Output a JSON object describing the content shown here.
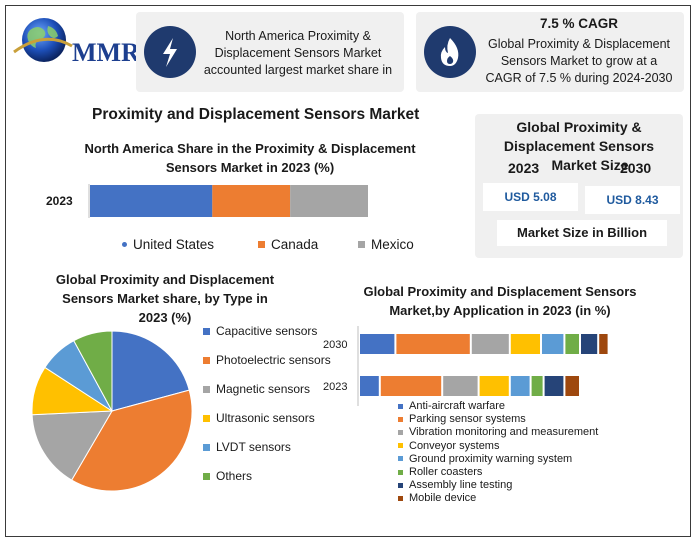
{
  "brand": {
    "logo_text": "MMR"
  },
  "cards": [
    {
      "icon": "lightning-icon",
      "title": "",
      "text_lines": [
        "North America Proximity &",
        "Displacement Sensors Market",
        "accounted largest market share in"
      ]
    },
    {
      "icon": "flame-icon",
      "title": "7.5 % CAGR",
      "text_lines": [
        "Global Proximity & Displacement",
        "Sensors Market to grow at a",
        "CAGR of 7.5 % during 2024-2030"
      ]
    }
  ],
  "main_title": "Proximity and Displacement Sensors Market",
  "market_size": {
    "title_lines": [
      "Global Proximity &",
      "Displacement Sensors",
      "Market Size"
    ],
    "year_left": "2023",
    "year_right": "2030",
    "value_2023": "USD 5.08",
    "value_2030": "USD 8.43",
    "note": "Market Size in Billion"
  },
  "colors": {
    "blue": "#4472c4",
    "orange": "#ed7d31",
    "gray": "#a5a5a5",
    "yellow": "#ffc000",
    "lightblue": "#5b9bd5",
    "green": "#70ad47",
    "navy": "#264478",
    "brown": "#9e480e",
    "card_icon": "#1f3a6e"
  },
  "chart_data": [
    {
      "type": "bar",
      "orientation": "horizontal-stacked",
      "title_lines": [
        "North America Share in the Proximity & Displacement",
        "Sensors Market in 2023 (%)"
      ],
      "categories": [
        "2023"
      ],
      "series": [
        {
          "name": "United States",
          "values": [
            44
          ]
        },
        {
          "name": "Canada",
          "values": [
            28
          ]
        },
        {
          "name": "Mexico",
          "values": [
            28
          ]
        }
      ],
      "legend_position": "bottom",
      "grid": false
    },
    {
      "type": "pie",
      "title_lines": [
        "Global Proximity and Displacement",
        "Sensors Market share, by Type in",
        "2023  (%)"
      ],
      "labels": [
        "Capacitive sensors",
        "Photoelectric sensors",
        "Magnetic sensors",
        "Ultrasonic sensors",
        "LVDT sensors",
        "Others"
      ],
      "values": [
        21,
        38,
        16,
        10,
        8,
        8
      ],
      "legend_position": "right"
    },
    {
      "type": "bar",
      "orientation": "horizontal-stacked",
      "title_lines": [
        "Global Proximity and Displacement Sensors",
        "Market,by Application in 2023 (in %)"
      ],
      "categories": [
        "2030",
        "2023"
      ],
      "series": [
        {
          "name": "Anti-aircraft warfare",
          "values": [
            14,
            8
          ]
        },
        {
          "name": "Parking sensor systems",
          "values": [
            29,
            24
          ]
        },
        {
          "name": "Vibration monitoring and measurement",
          "values": [
            15,
            14
          ]
        },
        {
          "name": "Conveyor systems",
          "values": [
            12,
            12
          ]
        },
        {
          "name": "Ground proximity warning system",
          "values": [
            9,
            8
          ]
        },
        {
          "name": "Roller coasters",
          "values": [
            6,
            5
          ]
        },
        {
          "name": "Assembly line testing",
          "values": [
            7,
            8
          ]
        },
        {
          "name": "Mobile device",
          "values": [
            4,
            6
          ]
        }
      ],
      "legend_position": "bottom",
      "grid": false
    }
  ]
}
